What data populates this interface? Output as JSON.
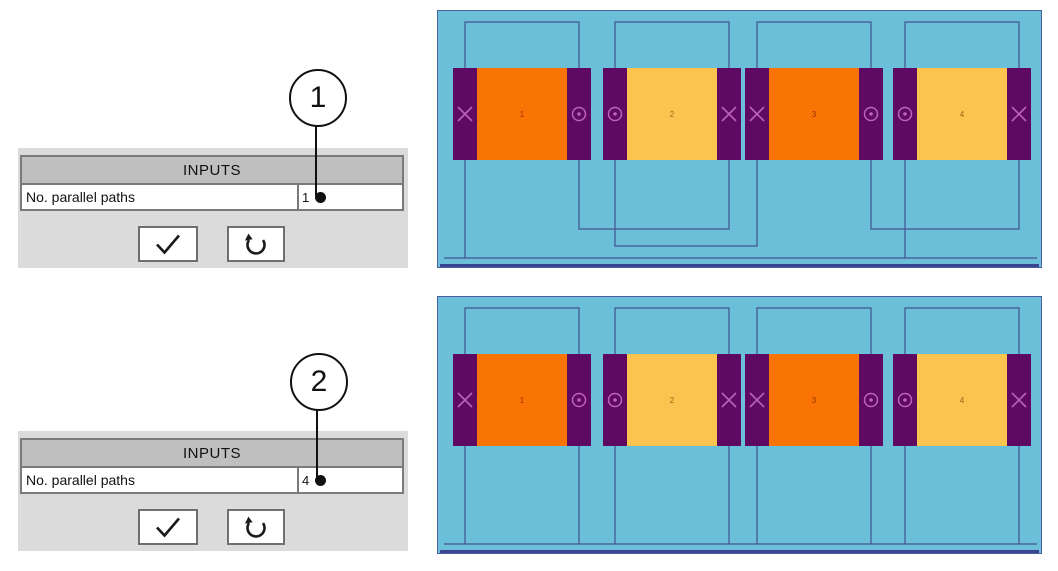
{
  "inputs_panel": {
    "header": "INPUTS",
    "param_label": "No. parallel paths"
  },
  "callout_groups": [
    {
      "callout_label": "1",
      "param_value": "1"
    },
    {
      "callout_label": "2",
      "param_value": "4"
    }
  ],
  "buttons": {
    "confirm_icon": "check-icon",
    "reset_icon": "reset-arrow-icon"
  },
  "winding": {
    "coils": [
      {
        "number": "1",
        "fill": "#fa7305",
        "number_color": "#9c2f05",
        "left_symbol": "cross",
        "right_symbol": "dot"
      },
      {
        "number": "2",
        "fill": "#fbc44f",
        "number_color": "#a55e13",
        "left_symbol": "dot",
        "right_symbol": "cross"
      },
      {
        "number": "3",
        "fill": "#fa7305",
        "number_color": "#9c2f05",
        "left_symbol": "cross",
        "right_symbol": "dot"
      },
      {
        "number": "4",
        "fill": "#fbc44f",
        "number_color": "#a55e13",
        "left_symbol": "dot",
        "right_symbol": "cross"
      }
    ],
    "colors": {
      "background": "#6cbfd9",
      "border": "#4a5fa0",
      "bottom_edge": "#3a4490",
      "bar": "#5e0a62",
      "symbol": "#bc62b8",
      "wire": "#425390"
    },
    "diagrams": [
      {
        "paths": 1,
        "connection": "series"
      },
      {
        "paths": 4,
        "connection": "parallel"
      }
    ]
  }
}
